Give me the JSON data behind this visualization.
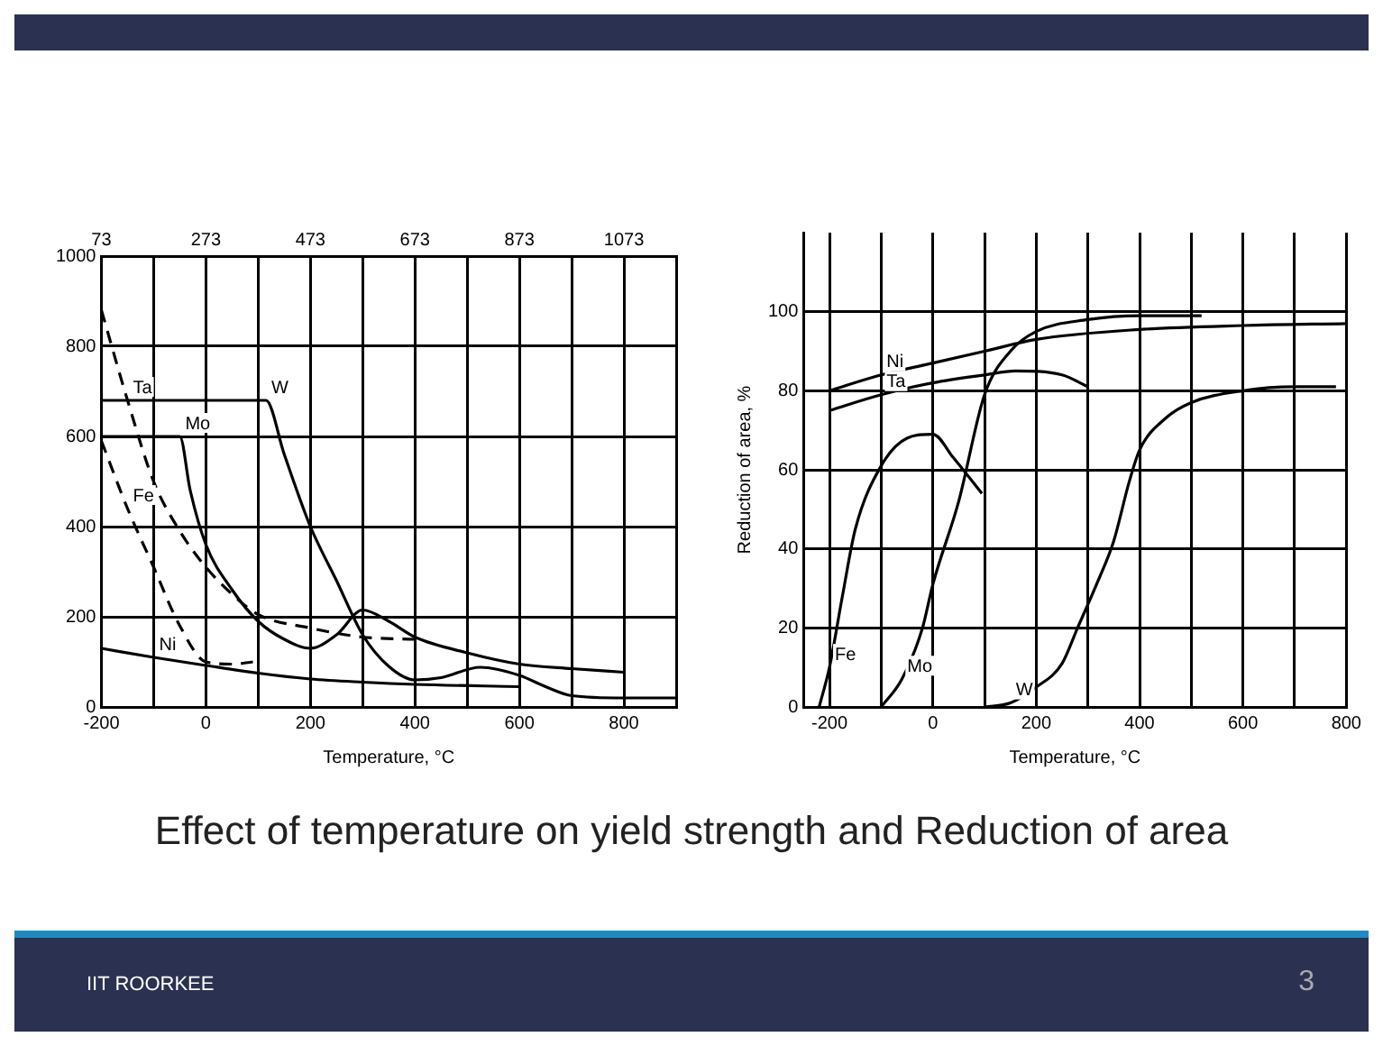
{
  "chart_data": [
    {
      "type": "line",
      "xlabel": "Temperature, °C",
      "xlim": [
        -200,
        900
      ],
      "ylim": [
        0,
        1000
      ],
      "xticks": [
        -200,
        {
          "value": -100,
          "label": null
        },
        0,
        {
          "value": 100,
          "label": null
        },
        200,
        {
          "value": 300,
          "label": null
        },
        400,
        {
          "value": 500,
          "label": null
        },
        600,
        {
          "value": 700,
          "label": null
        },
        800,
        {
          "value": 900,
          "label": null
        }
      ],
      "yticks": [
        0,
        200,
        400,
        600,
        800,
        1000
      ],
      "x2lim": [
        73,
        1173
      ],
      "x2ticks": [
        73,
        273,
        473,
        673,
        873,
        1073
      ],
      "grid": true,
      "marker": "none",
      "series": [
        {
          "name": "Ta",
          "color": "#000000",
          "line_style": "dashed",
          "x": [
            -200,
            -150,
            -100,
            -50,
            0,
            50,
            100,
            200,
            300,
            400
          ],
          "values": [
            880,
            680,
            500,
            390,
            310,
            250,
            205,
            175,
            155,
            150
          ]
        },
        {
          "name": "W",
          "color": "#000000",
          "line_style": "solid",
          "x": [
            -200,
            115,
            150,
            200,
            250,
            300,
            350,
            400,
            450,
            525,
            600,
            650,
            700,
            800,
            900
          ],
          "values": [
            680,
            680,
            560,
            400,
            280,
            160,
            90,
            60,
            65,
            88,
            70,
            45,
            25,
            20,
            20
          ]
        },
        {
          "name": "Mo",
          "color": "#000000",
          "line_style": "solid",
          "x": [
            -200,
            -50,
            -30,
            0,
            50,
            100,
            150,
            200,
            250,
            300,
            350,
            400,
            500,
            600,
            700,
            800
          ],
          "values": [
            600,
            600,
            480,
            360,
            260,
            190,
            150,
            130,
            160,
            215,
            190,
            155,
            120,
            95,
            85,
            77
          ]
        },
        {
          "name": "Fe",
          "color": "#000000",
          "line_style": "dashed",
          "x": [
            -200,
            -150,
            -100,
            -50,
            0,
            50,
            90
          ],
          "values": [
            590,
            440,
            310,
            180,
            100,
            95,
            100
          ]
        },
        {
          "name": "Ni",
          "color": "#000000",
          "line_style": "solid",
          "x": [
            -200,
            -100,
            0,
            100,
            200,
            300,
            400,
            600
          ],
          "values": [
            130,
            110,
            92,
            75,
            62,
            55,
            50,
            45
          ]
        }
      ]
    },
    {
      "type": "line",
      "xlabel": "Temperature, °C",
      "ylabel": "Reduction of area, %",
      "xlim": [
        -250,
        800
      ],
      "ylim": [
        0,
        120
      ],
      "xticks": [
        -200,
        {
          "value": -100,
          "label": null
        },
        0,
        {
          "value": 100,
          "label": null
        },
        200,
        {
          "value": 300,
          "label": null
        },
        400,
        {
          "value": 500,
          "label": null
        },
        600,
        {
          "value": 700,
          "label": null
        },
        800
      ],
      "yticks": [
        0,
        20,
        40,
        60,
        80,
        100
      ],
      "grid": true,
      "marker": "none",
      "annotations": [
        "Effect of temperature on yield strength and Reduction of area",
        "IIT ROORKEE",
        "3"
      ],
      "series": [
        {
          "name": "Ni",
          "color": "#000000",
          "line_style": "solid",
          "x": [
            -200,
            -100,
            0,
            100,
            200,
            400,
            600,
            800
          ],
          "values": [
            80,
            84,
            87,
            90,
            93,
            95.5,
            96.5,
            97
          ]
        },
        {
          "name": "Ta",
          "color": "#000000",
          "line_style": "solid",
          "x": [
            -200,
            -100,
            0,
            100,
            160,
            250,
            300
          ],
          "values": [
            75,
            79,
            82,
            84,
            85,
            84,
            81
          ]
        },
        {
          "name": "Fe",
          "color": "#000000",
          "line_style": "solid",
          "x": [
            -220,
            -200,
            -175,
            -150,
            -100,
            -50,
            0,
            40,
            95
          ],
          "values": [
            0,
            10,
            28,
            45,
            61,
            68,
            69,
            63,
            54
          ]
        },
        {
          "name": "Mo",
          "color": "#000000",
          "line_style": "solid",
          "x": [
            -100,
            -60,
            -20,
            0,
            50,
            100,
            150,
            200,
            300,
            400,
            520
          ],
          "values": [
            0,
            7,
            20,
            31,
            52,
            79,
            90,
            95,
            98,
            99,
            99
          ]
        },
        {
          "name": "W",
          "color": "#000000",
          "line_style": "solid",
          "x": [
            100,
            150,
            200,
            250,
            280,
            320,
            350,
            380,
            400,
            450,
            500,
            600,
            700,
            780
          ],
          "values": [
            0,
            1,
            5,
            11,
            20,
            32,
            42,
            57,
            65,
            73,
            77,
            80,
            81,
            81
          ]
        }
      ]
    }
  ]
}
